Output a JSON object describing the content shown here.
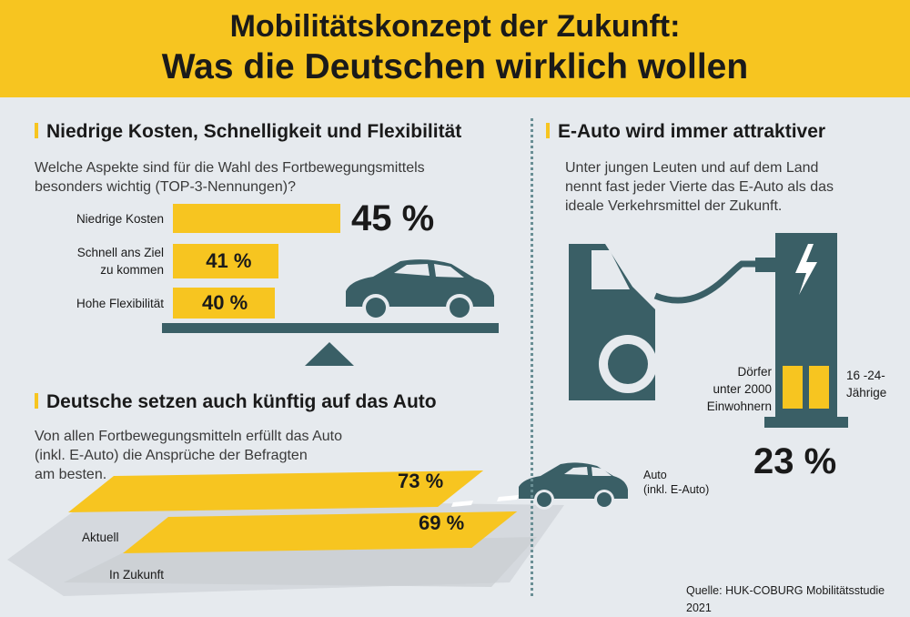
{
  "header": {
    "line1": "Mobilitätskonzept der Zukunft:",
    "line2": "Was die Deutschen wirklich wollen"
  },
  "section1": {
    "title": "Niedrige Kosten, Schnelligkeit und Flexibilität",
    "question_line1": "Welche Aspekte sind für die Wahl des Fortbewegungsmittels",
    "question_line2": "besonders wichtig (TOP-3-Nennungen)?"
  },
  "section2": {
    "title": "E-Auto wird immer attraktiver",
    "text_line1": "Unter jungen Leuten und auf dem Land",
    "text_line2": "nennt fast jeder Vierte das E-Auto als das",
    "text_line3": "ideale Verkehrsmittel der Zukunft.",
    "group1_line1": "Dörfer",
    "group1_line2": "unter 2000",
    "group1_line3": "Einwohnern",
    "group2_line1": "16 -24-",
    "group2_line2": "Jährige",
    "value_label": "23 %"
  },
  "section3": {
    "title": "Deutsche setzen auch künftig auf das Auto",
    "text_line1": "Von allen Fortbewegungsmitteln erfüllt das Auto",
    "text_line2": "(inkl. E-Auto) die Ansprüche der Befragten",
    "text_line3": "am besten.",
    "car_label_line1": "Auto",
    "car_label_line2": "(inkl. E-Auto)"
  },
  "source": "Quelle: HUK-COBURG Mobilitätsstudie 2021",
  "colors": {
    "accent": "#f7c520",
    "teal": "#3a5f66",
    "background": "#e6eaee"
  },
  "chart_data": [
    {
      "type": "bar",
      "orientation": "horizontal",
      "categories_display": [
        [
          "Niedrige Kosten"
        ],
        [
          "Schnell ans Ziel",
          "zu kommen"
        ],
        [
          "Hohe Flexibilität"
        ]
      ],
      "values": [
        45,
        41,
        40
      ],
      "value_labels": [
        "45 %",
        "41 %",
        "40 %"
      ],
      "unit": "%"
    },
    {
      "type": "bar",
      "orientation": "horizontal",
      "categories": [
        "Aktuell",
        "In Zukunft"
      ],
      "values": [
        73,
        69
      ],
      "value_labels": [
        "73 %",
        "69 %"
      ],
      "unit": "%"
    }
  ]
}
